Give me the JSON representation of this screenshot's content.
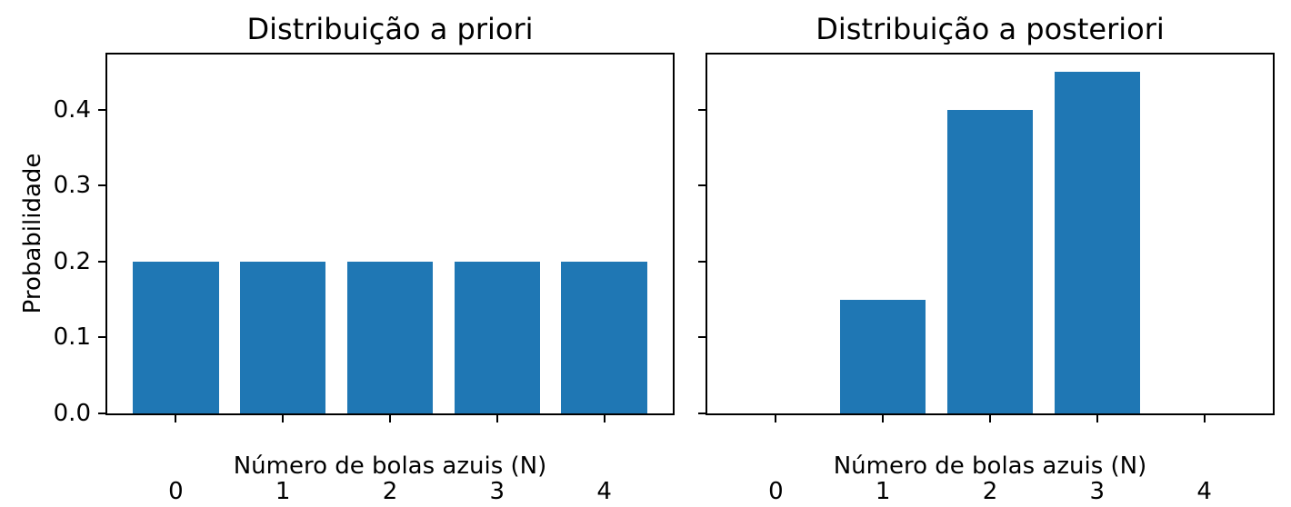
{
  "figure": {
    "background_color": "#ffffff",
    "bar_color": "#1f77b4",
    "axis_color": "#000000",
    "text_color": "#000000"
  },
  "chart_data": [
    {
      "type": "bar",
      "title": "Distribuição a priori",
      "xlabel": "Número de bolas azuis (N)",
      "ylabel": "Probabilidade",
      "categories": [
        0,
        1,
        2,
        3,
        4
      ],
      "xtick_labels": [
        "0",
        "1",
        "2",
        "3",
        "4"
      ],
      "values": [
        0.2,
        0.2,
        0.2,
        0.2,
        0.2
      ],
      "yticks": [
        0.0,
        0.1,
        0.2,
        0.3,
        0.4
      ],
      "ytick_labels": [
        "0.0",
        "0.1",
        "0.2",
        "0.3",
        "0.4"
      ],
      "show_ytick_labels": true,
      "xlim": [
        -0.64,
        4.64
      ],
      "ylim": [
        0,
        0.4725
      ],
      "bar_width": 0.8,
      "grid": false,
      "legend": null
    },
    {
      "type": "bar",
      "title": "Distribuição a posteriori",
      "xlabel": "Número de bolas azuis (N)",
      "ylabel": "",
      "categories": [
        0,
        1,
        2,
        3,
        4
      ],
      "xtick_labels": [
        "0",
        "1",
        "2",
        "3",
        "4"
      ],
      "values": [
        0.0,
        0.15,
        0.4,
        0.45,
        0.0
      ],
      "yticks": [
        0.0,
        0.1,
        0.2,
        0.3,
        0.4
      ],
      "ytick_labels": [
        "0.0",
        "0.1",
        "0.2",
        "0.3",
        "0.4"
      ],
      "show_ytick_labels": false,
      "xlim": [
        -0.64,
        4.64
      ],
      "ylim": [
        0,
        0.4725
      ],
      "bar_width": 0.8,
      "grid": false,
      "legend": null
    }
  ]
}
